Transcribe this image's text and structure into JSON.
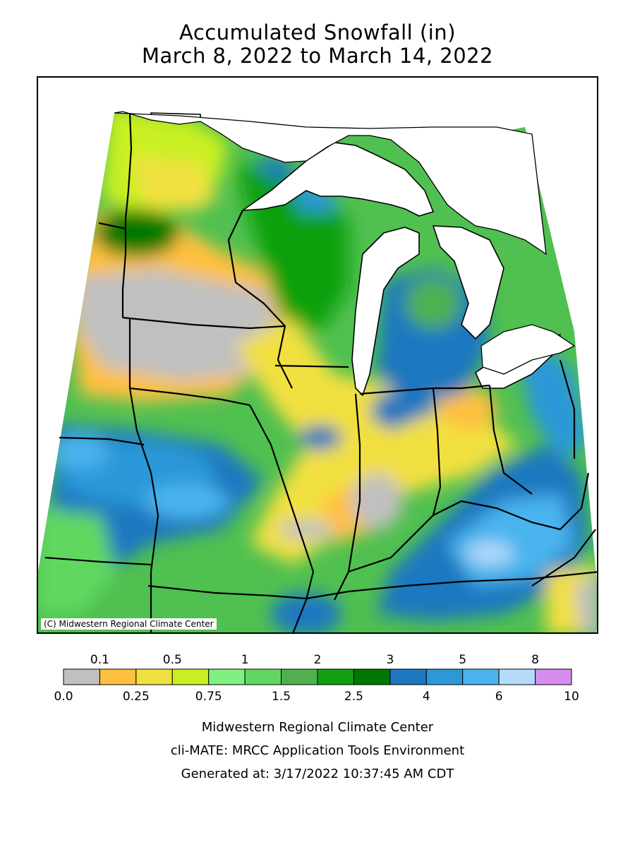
{
  "title": {
    "line1": "Accumulated Snowfall (in)",
    "line2": "March 8, 2022 to March 14, 2022"
  },
  "map": {
    "copyright": "(C) Midwestern Regional Climate Center",
    "lake_color": "#ffffff",
    "boundary_color": "#000000"
  },
  "legend": {
    "bins": [
      {
        "min": 0.0,
        "max": 0.1,
        "color": "#c0c0c0"
      },
      {
        "min": 0.1,
        "max": 0.25,
        "color": "#ffc040"
      },
      {
        "min": 0.25,
        "max": 0.5,
        "color": "#f2e040"
      },
      {
        "min": 0.5,
        "max": 0.75,
        "color": "#c8f020"
      },
      {
        "min": 0.75,
        "max": 1,
        "color": "#80f080"
      },
      {
        "min": 1,
        "max": 1.5,
        "color": "#60d860"
      },
      {
        "min": 1.5,
        "max": 2,
        "color": "#50b050"
      },
      {
        "min": 2,
        "max": 2.5,
        "color": "#10a010"
      },
      {
        "min": 2.5,
        "max": 3,
        "color": "#007800"
      },
      {
        "min": 3,
        "max": 4,
        "color": "#1e78c0"
      },
      {
        "min": 4,
        "max": 5,
        "color": "#2c98d8"
      },
      {
        "min": 5,
        "max": 6,
        "color": "#4ab4ee"
      },
      {
        "min": 6,
        "max": 8,
        "color": "#b4dcfa"
      },
      {
        "min": 8,
        "max": 10,
        "color": "#d88cf0"
      }
    ],
    "top_labels": [
      "0.1",
      "0.5",
      "1",
      "2",
      "3",
      "5",
      "8"
    ],
    "bottom_labels": [
      "0.0",
      "0.25",
      "0.75",
      "1.5",
      "2.5",
      "4",
      "6",
      "10"
    ]
  },
  "footer": {
    "line1": "Midwestern Regional Climate Center",
    "line2": "cli-MATE: MRCC Application Tools Environment",
    "line3": "Generated at: 3/17/2022 10:37:45 AM CDT"
  }
}
